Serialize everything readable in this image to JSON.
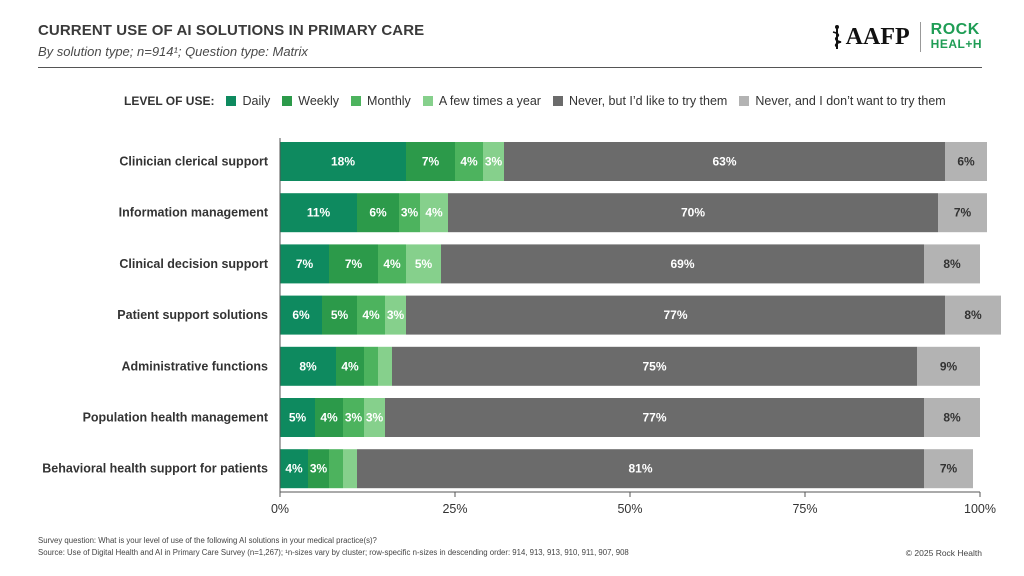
{
  "header": {
    "title": "CURRENT USE OF AI SOLUTIONS IN PRIMARY CARE",
    "subtitle": "By solution type; n=914¹; Question type: Matrix"
  },
  "logos": {
    "aafp": "AAFP",
    "rock_line1": "ROCK",
    "rock_line2": "HEAL+H"
  },
  "legend": {
    "title": "LEVEL OF USE:",
    "items": [
      {
        "label": "Daily",
        "color": "#0e8a5f"
      },
      {
        "label": "Weekly",
        "color": "#2c9a4a"
      },
      {
        "label": "Monthly",
        "color": "#4db35e"
      },
      {
        "label": "A few times a year",
        "color": "#86d08c"
      },
      {
        "label": "Never, but I’d like to try them",
        "color": "#6b6b6b"
      },
      {
        "label": "Never, and I don’t want to try them",
        "color": "#b3b3b3"
      }
    ]
  },
  "chart_data": {
    "type": "bar",
    "orientation": "horizontal",
    "stacked": true,
    "title": "CURRENT USE OF AI SOLUTIONS IN PRIMARY CARE",
    "xlim": [
      0,
      100
    ],
    "x_ticks": [
      "0%",
      "25%",
      "50%",
      "75%",
      "100%"
    ],
    "grid": false,
    "categories": [
      "Clinician clerical support",
      "Information management",
      "Clinical decision support",
      "Patient support solutions",
      "Administrative functions",
      "Population health management",
      "Behavioral health support for patients"
    ],
    "series": [
      {
        "name": "Daily",
        "color": "#0e8a5f",
        "values": [
          18,
          11,
          7,
          6,
          8,
          5,
          4
        ],
        "labels": [
          "18%",
          "11%",
          "7%",
          "6%",
          "8%",
          "5%",
          "4%"
        ]
      },
      {
        "name": "Weekly",
        "color": "#2c9a4a",
        "values": [
          7,
          6,
          7,
          5,
          4,
          4,
          3
        ],
        "labels": [
          "7%",
          "6%",
          "7%",
          "5%",
          "4%",
          "4%",
          "3%"
        ]
      },
      {
        "name": "Monthly",
        "color": "#4db35e",
        "values": [
          4,
          3,
          4,
          4,
          2,
          3,
          2
        ],
        "labels": [
          "4%",
          "3%",
          "4%",
          "4%",
          "",
          "3%",
          ""
        ]
      },
      {
        "name": "A few times a year",
        "color": "#86d08c",
        "values": [
          3,
          4,
          5,
          3,
          2,
          3,
          2
        ],
        "labels": [
          "3%",
          "4%",
          "5%",
          "3%",
          "",
          "3%",
          ""
        ]
      },
      {
        "name": "Never, but I’d like to try them",
        "color": "#6b6b6b",
        "values": [
          63,
          70,
          69,
          77,
          75,
          77,
          81
        ],
        "labels": [
          "63%",
          "70%",
          "69%",
          "77%",
          "75%",
          "77%",
          "81%"
        ]
      },
      {
        "name": "Never, and I don’t want to try them",
        "color": "#b3b3b3",
        "values": [
          6,
          7,
          8,
          8,
          9,
          8,
          7
        ],
        "labels": [
          "6%",
          "7%",
          "8%",
          "8%",
          "9%",
          "8%",
          "7%"
        ]
      }
    ]
  },
  "footer": {
    "question": "Survey question: What is your level of use of the following AI solutions in your medical practice(s)?",
    "source": "Source: Use of Digital Health and AI in Primary Care Survey (n=1,267); ¹n-sizes vary by cluster; row-specific n-sizes in descending order: 914, 913, 913, 910, 911, 907, 908",
    "copyright": "© 2025 Rock Health"
  }
}
